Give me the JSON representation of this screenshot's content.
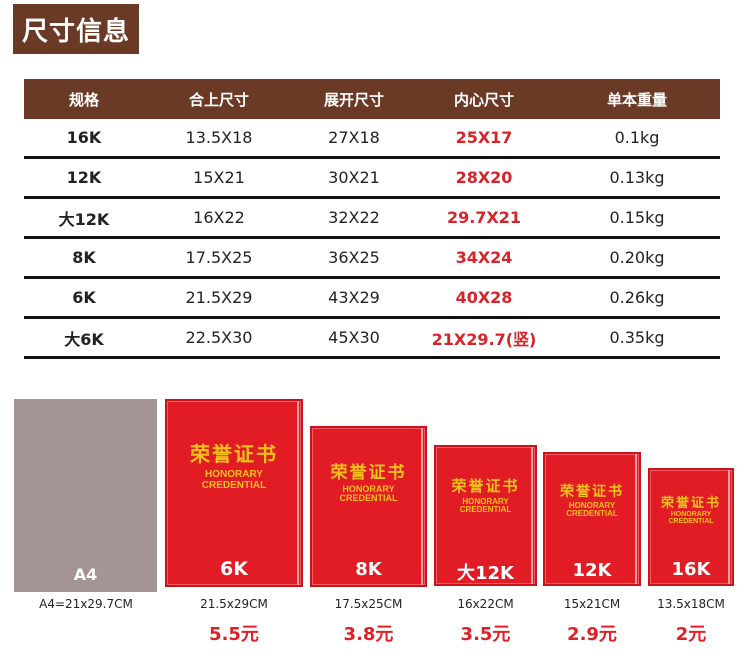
{
  "header": {
    "title": "尺寸信息"
  },
  "table": {
    "columns": [
      "规格",
      "合上尺寸",
      "展开尺寸",
      "内心尺寸",
      "单本重量"
    ],
    "rows": [
      [
        "16K",
        "13.5X18",
        "27X18",
        "25X17",
        "0.1kg"
      ],
      [
        "12K",
        "15X21",
        "30X21",
        "28X20",
        "0.13kg"
      ],
      [
        "大12K",
        "16X22",
        "32X22",
        "29.7X21",
        "0.15kg"
      ],
      [
        "8K",
        "17.5X25",
        "36X25",
        "34X24",
        "0.20kg"
      ],
      [
        "6K",
        "21.5X29",
        "43X29",
        "40X28",
        "0.26kg"
      ],
      [
        "大6K",
        "22.5X30",
        "45X30",
        "21X29.7(竖)",
        "0.35kg"
      ]
    ]
  },
  "books": {
    "a4": {
      "label": "A4",
      "dims": "A4=21x29.7CM"
    },
    "cover_cn": "荣誉证书",
    "cover_en_1": "HONORARY",
    "cover_en_2": "CREDENTIAL",
    "items": [
      {
        "label": "6K",
        "dims": "21.5x29CM",
        "price": "5.5元"
      },
      {
        "label": "8K",
        "dims": "17.5x25CM",
        "price": "3.8元"
      },
      {
        "label": "大12K",
        "dims": "16x22CM",
        "price": "3.5元"
      },
      {
        "label": "12K",
        "dims": "15x21CM",
        "price": "2.9元"
      },
      {
        "label": "16K",
        "dims": "13.5x18CM",
        "price": "2元"
      }
    ]
  },
  "colors": {
    "brown": "#6a3a26",
    "red": "#e11c25",
    "gold": "#f2c21b",
    "a4_gray": "#a49494"
  }
}
